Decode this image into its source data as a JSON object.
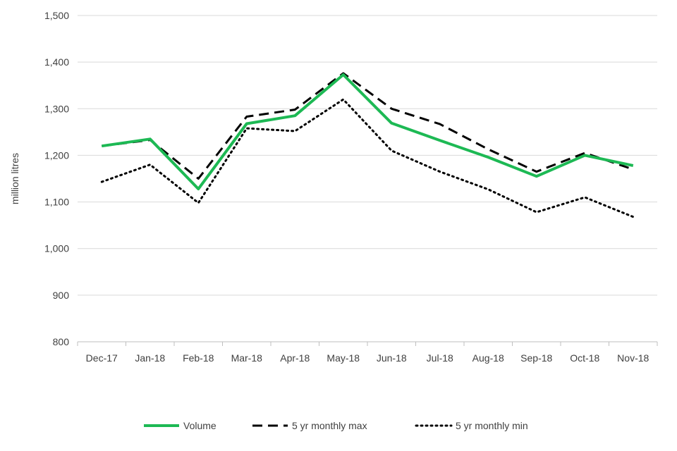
{
  "chart_data": {
    "type": "line",
    "title": "",
    "xlabel": "",
    "ylabel": "million litres",
    "ylim": [
      800,
      1500
    ],
    "yticks": [
      800,
      900,
      1000,
      1100,
      1200,
      1300,
      1400,
      1500
    ],
    "ytick_labels": [
      "800",
      "900",
      "1,000",
      "1,100",
      "1,200",
      "1,300",
      "1,400",
      "1,500"
    ],
    "grid": "horizontal",
    "legend_position": "bottom",
    "categories": [
      "Dec-17",
      "Jan-18",
      "Feb-18",
      "Mar-18",
      "Apr-18",
      "May-18",
      "Jun-18",
      "Jul-18",
      "Aug-18",
      "Sep-18",
      "Oct-18",
      "Nov-18"
    ],
    "series": [
      {
        "name": "Volume",
        "style": "solid",
        "color": "#1db954",
        "values": [
          1220,
          1235,
          1128,
          1268,
          1285,
          1373,
          1269,
          1232,
          1196,
          1155,
          1200,
          1178
        ]
      },
      {
        "name": "5 yr monthly max",
        "style": "dashed",
        "color": "#000000",
        "values": [
          1220,
          1233,
          1150,
          1283,
          1298,
          1376,
          1300,
          1267,
          1213,
          1165,
          1205,
          1170
        ]
      },
      {
        "name": "5 yr monthly min",
        "style": "dotted",
        "color": "#000000",
        "values": [
          1143,
          1180,
          1098,
          1258,
          1252,
          1320,
          1210,
          1165,
          1127,
          1078,
          1110,
          1068
        ]
      }
    ]
  }
}
